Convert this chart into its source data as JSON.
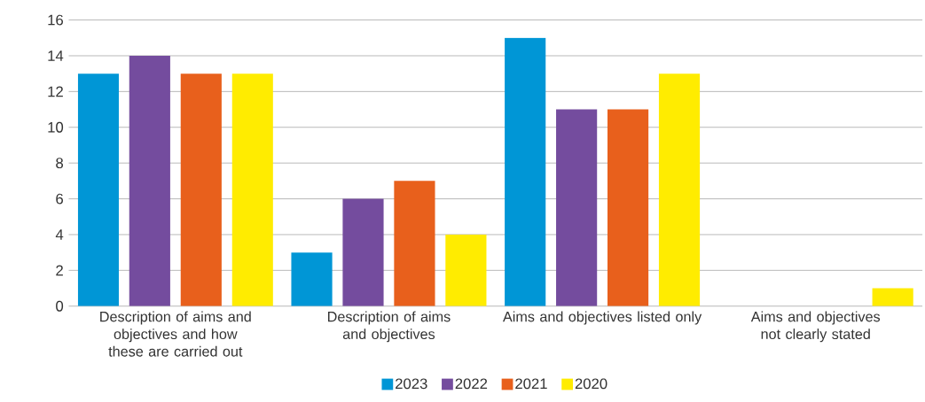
{
  "chart_data": {
    "type": "bar",
    "categories": [
      "Description of aims and objectives and how these are carried out",
      "Description of aims and objectives",
      "Aims and objectives listed only",
      "Aims and objectives not clearly stated"
    ],
    "series": [
      {
        "name": "2023",
        "color": "#0096d6",
        "values": [
          13,
          3,
          15,
          0
        ]
      },
      {
        "name": "2022",
        "color": "#744c9e",
        "values": [
          14,
          6,
          11,
          0
        ]
      },
      {
        "name": "2021",
        "color": "#e8601c",
        "values": [
          13,
          7,
          11,
          0
        ]
      },
      {
        "name": "2020",
        "color": "#ffec00",
        "values": [
          13,
          4,
          13,
          1
        ]
      }
    ],
    "ylim": [
      0,
      16
    ],
    "yticks": [
      0,
      2,
      4,
      6,
      8,
      10,
      12,
      14,
      16
    ],
    "grid": "y",
    "legend": "bottom"
  }
}
